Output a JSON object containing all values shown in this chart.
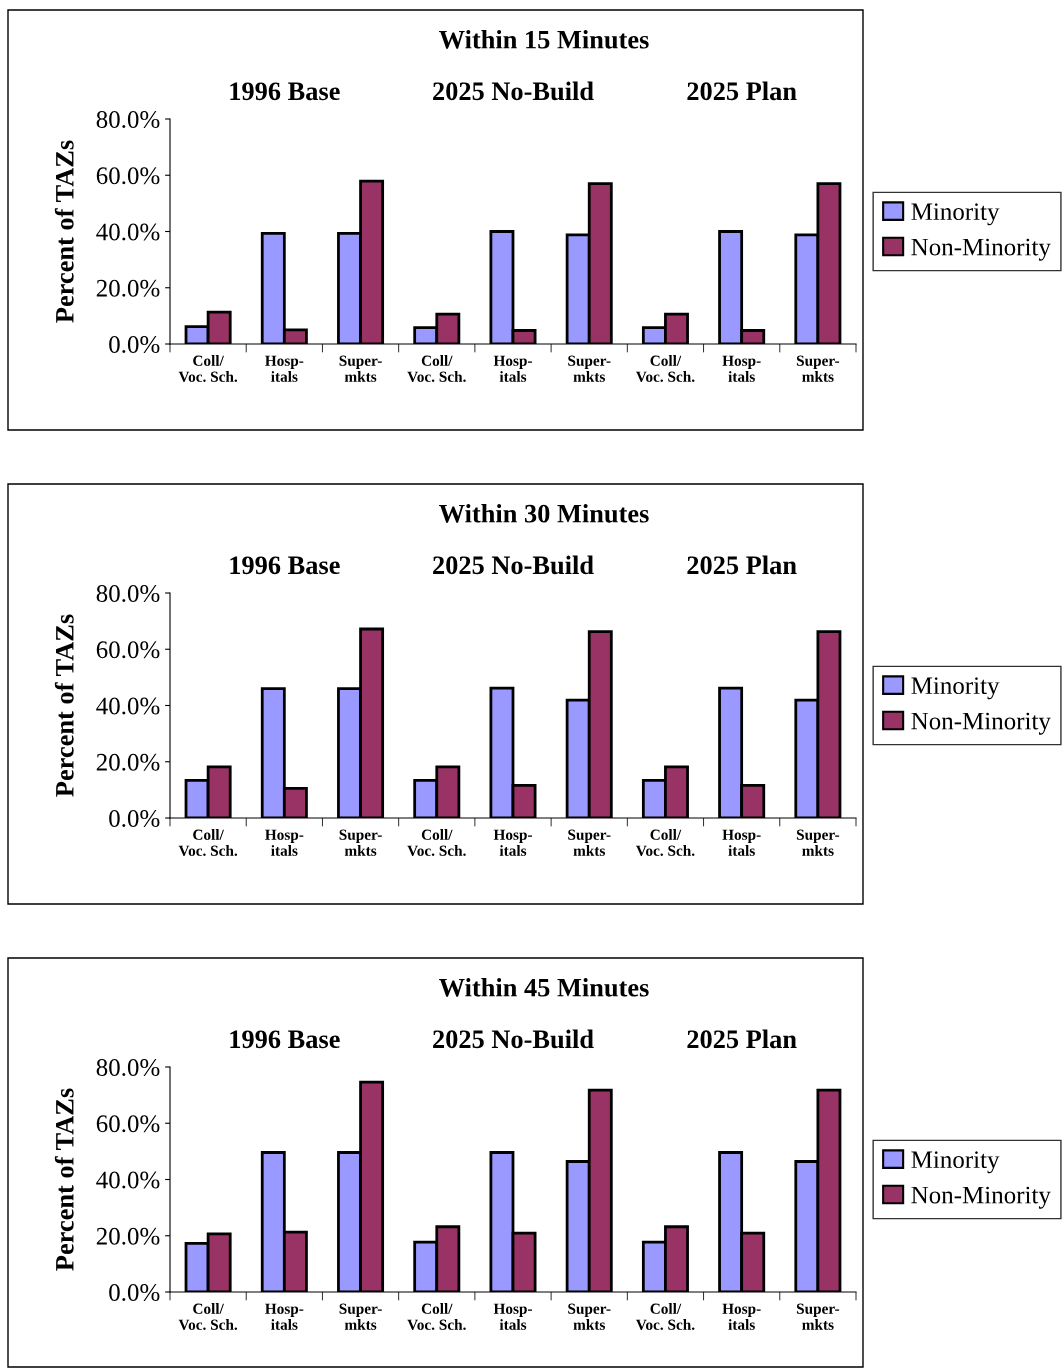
{
  "chart_data": [
    {
      "type": "bar",
      "title": "Within 15 Minutes",
      "ylabel": "Percent of TAZs",
      "annotations": [
        "1996 Base",
        "2025 No-Build",
        "2025 Plan"
      ],
      "categories": [
        "Coll/\nVoc. Sch.",
        "Hosp-\nitals",
        "Super-\nmkts",
        "Coll/\nVoc. Sch.",
        "Hosp-\nitals",
        "Super-\nmkts",
        "Coll/\nVoc. Sch.",
        "Hosp-\nitals",
        "Super-\nmkts"
      ],
      "series": [
        {
          "name": "Minority",
          "color": "#9999ff",
          "values": [
            6.2,
            39.3,
            39.3,
            5.8,
            40.0,
            38.8,
            5.8,
            40.0,
            38.8
          ]
        },
        {
          "name": "Non-Minority",
          "color": "#993366",
          "values": [
            11.3,
            5.0,
            57.9,
            10.6,
            4.8,
            57.0,
            10.6,
            4.8,
            57.0
          ]
        }
      ],
      "ylim": [
        0,
        80
      ],
      "yticks": [
        {
          "value": 0,
          "label": "0.0%"
        },
        {
          "value": 20,
          "label": "20.0%"
        },
        {
          "value": 40,
          "label": "40.0%"
        },
        {
          "value": 60,
          "label": "60.0%"
        },
        {
          "value": 80,
          "label": "80.0%"
        }
      ],
      "legend": "right",
      "grid": false
    },
    {
      "type": "bar",
      "title": "Within 30 Minutes",
      "ylabel": "Percent of TAZs",
      "annotations": [
        "1996 Base",
        "2025 No-Build",
        "2025 Plan"
      ],
      "categories": [
        "Coll/\nVoc. Sch.",
        "Hosp-\nitals",
        "Super-\nmkts",
        "Coll/\nVoc. Sch.",
        "Hosp-\nitals",
        "Super-\nmkts",
        "Coll/\nVoc. Sch.",
        "Hosp-\nitals",
        "Super-\nmkts"
      ],
      "series": [
        {
          "name": "Minority",
          "color": "#9999ff",
          "values": [
            13.4,
            46.0,
            46.0,
            13.4,
            46.2,
            41.9,
            13.4,
            46.2,
            41.9
          ]
        },
        {
          "name": "Non-Minority",
          "color": "#993366",
          "values": [
            18.2,
            10.5,
            67.2,
            18.2,
            11.6,
            66.3,
            18.2,
            11.6,
            66.3
          ]
        }
      ],
      "ylim": [
        0,
        80
      ],
      "yticks": [
        {
          "value": 0,
          "label": "0.0%"
        },
        {
          "value": 20,
          "label": "20.0%"
        },
        {
          "value": 40,
          "label": "40.0%"
        },
        {
          "value": 60,
          "label": "60.0%"
        },
        {
          "value": 80,
          "label": "80.0%"
        }
      ],
      "legend": "right",
      "grid": false
    },
    {
      "type": "bar",
      "title": "Within 45 Minutes",
      "ylabel": "Percent of TAZs",
      "annotations": [
        "1996 Base",
        "2025 No-Build",
        "2025 Plan"
      ],
      "categories": [
        "Coll/\nVoc. Sch.",
        "Hosp-\nitals",
        "Super-\nmkts",
        "Coll/\nVoc. Sch.",
        "Hosp-\nitals",
        "Super-\nmkts",
        "Coll/\nVoc. Sch.",
        "Hosp-\nitals",
        "Super-\nmkts"
      ],
      "series": [
        {
          "name": "Minority",
          "color": "#9999ff",
          "values": [
            17.3,
            49.6,
            49.6,
            17.7,
            49.6,
            46.4,
            17.7,
            49.6,
            46.4
          ]
        },
        {
          "name": "Non-Minority",
          "color": "#993366",
          "values": [
            20.7,
            21.3,
            74.6,
            23.2,
            20.9,
            71.8,
            23.2,
            20.9,
            71.8
          ]
        }
      ],
      "ylim": [
        0,
        80
      ],
      "yticks": [
        {
          "value": 0,
          "label": "0.0%"
        },
        {
          "value": 20,
          "label": "20.0%"
        },
        {
          "value": 40,
          "label": "40.0%"
        },
        {
          "value": 60,
          "label": "60.0%"
        },
        {
          "value": 80,
          "label": "80.0%"
        }
      ],
      "legend": "right",
      "grid": false
    }
  ]
}
